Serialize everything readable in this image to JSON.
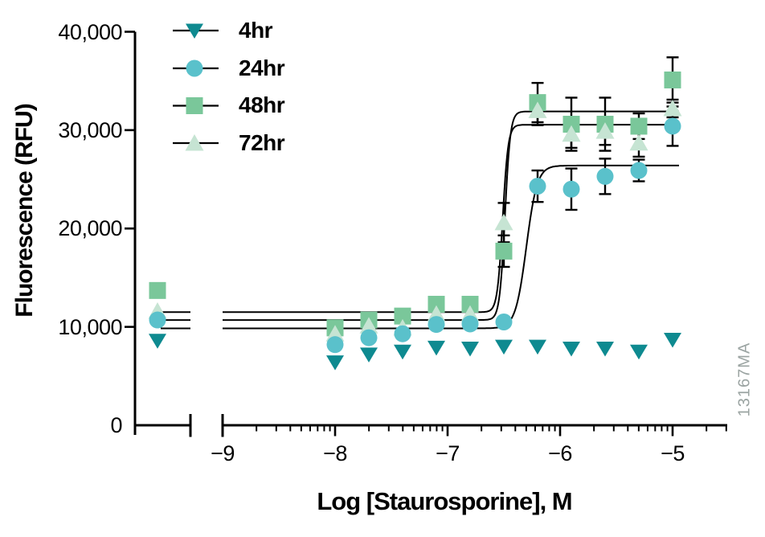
{
  "figure": {
    "watermark": "13167MA",
    "background": "#ffffff",
    "axis_color": "#000000",
    "curve_color": "#000000",
    "watermark_color": "#9ba4a2"
  },
  "chart_data": {
    "type": "scatter",
    "title": "",
    "xlabel": "Log [Staurosporine], M",
    "ylabel": "Fluorescence (RFU)",
    "x_scale": "log10 with axis break; leftmost point cluster is the untreated control",
    "xlim_log": [
      -9,
      -4.5
    ],
    "ylim": [
      0,
      40000
    ],
    "grid": false,
    "legend_position": "top-left inside plot",
    "yticks": [
      {
        "label": "40,000",
        "value": 40000
      },
      {
        "label": "30,000",
        "value": 30000
      },
      {
        "label": "20,000",
        "value": 20000
      },
      {
        "label": "10,000",
        "value": 10000
      },
      {
        "label": "0",
        "value": 0
      }
    ],
    "xticks": [
      {
        "label": "−9",
        "log": -9
      },
      {
        "label": "−8",
        "log": -8
      },
      {
        "label": "−7",
        "log": -7
      },
      {
        "label": "−6",
        "log": -6
      },
      {
        "label": "−5",
        "log": -5
      }
    ],
    "x_points_log": [
      -8,
      -7.7,
      -7.4,
      -7.1,
      -6.8,
      -6.5,
      -6.2,
      -5.9,
      -5.6,
      -5.3,
      -5.0
    ],
    "series": [
      {
        "name": "4hr",
        "marker": "triangle-down",
        "color": "#0e8a90",
        "control": {
          "value": 8600,
          "err": null
        },
        "points": [
          {
            "log": -8.0,
            "value": 6400,
            "err": null
          },
          {
            "log": -7.7,
            "value": 7200,
            "err": null
          },
          {
            "log": -7.4,
            "value": 7500,
            "err": null
          },
          {
            "log": -7.1,
            "value": 7900,
            "err": null
          },
          {
            "log": -6.8,
            "value": 7800,
            "err": null
          },
          {
            "log": -6.5,
            "value": 8000,
            "err": null
          },
          {
            "log": -6.2,
            "value": 8000,
            "err": null
          },
          {
            "log": -5.9,
            "value": 7800,
            "err": null
          },
          {
            "log": -5.6,
            "value": 7800,
            "err": null
          },
          {
            "log": -5.3,
            "value": 7500,
            "err": null
          },
          {
            "log": -5.0,
            "value": 8700,
            "err": null
          }
        ],
        "fit": null
      },
      {
        "name": "24hr",
        "marker": "circle",
        "color": "#5ac1cb",
        "control": {
          "value": 10700,
          "err": null
        },
        "points": [
          {
            "log": -8.0,
            "value": 8200,
            "err": null
          },
          {
            "log": -7.7,
            "value": 8900,
            "err": null
          },
          {
            "log": -7.4,
            "value": 9300,
            "err": null
          },
          {
            "log": -7.1,
            "value": 10250,
            "err": null
          },
          {
            "log": -6.8,
            "value": 10300,
            "err": null
          },
          {
            "log": -6.5,
            "value": 10500,
            "err": null
          },
          {
            "log": -6.2,
            "value": 24300,
            "err": 1600
          },
          {
            "log": -5.9,
            "value": 24000,
            "err": 2100
          },
          {
            "log": -5.6,
            "value": 25300,
            "err": 1800
          },
          {
            "log": -5.3,
            "value": 25900,
            "err": 1100
          },
          {
            "log": -5.0,
            "value": 30400,
            "err": 2000
          }
        ],
        "fit": {
          "bottom": 9850,
          "top": 26400,
          "logec50": -6.3,
          "hill": 9
        }
      },
      {
        "name": "48hr",
        "marker": "square",
        "color": "#7ac79a",
        "control": {
          "value": 13700,
          "err": null
        },
        "points": [
          {
            "log": -8.0,
            "value": 9900,
            "err": null
          },
          {
            "log": -7.7,
            "value": 10700,
            "err": null
          },
          {
            "log": -7.4,
            "value": 11100,
            "err": null
          },
          {
            "log": -7.1,
            "value": 12300,
            "err": null
          },
          {
            "log": -6.8,
            "value": 12300,
            "err": null
          },
          {
            "log": -6.5,
            "value": 17700,
            "err": 1600
          },
          {
            "log": -6.2,
            "value": 32800,
            "err": 2000
          },
          {
            "log": -5.9,
            "value": 30600,
            "err": 2700
          },
          {
            "log": -5.6,
            "value": 30600,
            "err": 2700
          },
          {
            "log": -5.3,
            "value": 30400,
            "err": 1300
          },
          {
            "log": -5.0,
            "value": 35100,
            "err": 2300
          }
        ],
        "fit": {
          "bottom": 10700,
          "top": 31900,
          "logec50": -6.49,
          "hill": 18
        }
      },
      {
        "name": "72hr",
        "marker": "triangle-up",
        "color": "#c6e4d3",
        "control": {
          "value": 11600,
          "err": null
        },
        "points": [
          {
            "log": -8.0,
            "value": 9300,
            "err": null
          },
          {
            "log": -7.7,
            "value": 10100,
            "err": null
          },
          {
            "log": -7.4,
            "value": 9900,
            "err": null
          },
          {
            "log": -7.1,
            "value": 11300,
            "err": null
          },
          {
            "log": -6.8,
            "value": 11300,
            "err": null
          },
          {
            "log": -6.5,
            "value": 20600,
            "err": 2000
          },
          {
            "log": -6.2,
            "value": 32000,
            "err": 1500
          },
          {
            "log": -5.9,
            "value": 29600,
            "err": 1400
          },
          {
            "log": -5.6,
            "value": 29900,
            "err": 1400
          },
          {
            "log": -5.3,
            "value": 28700,
            "err": 1400
          },
          {
            "log": -5.0,
            "value": 32200,
            "err": 900
          }
        ],
        "fit": {
          "bottom": 11500,
          "top": 30550,
          "logec50": -6.51,
          "hill": 18
        }
      }
    ]
  }
}
